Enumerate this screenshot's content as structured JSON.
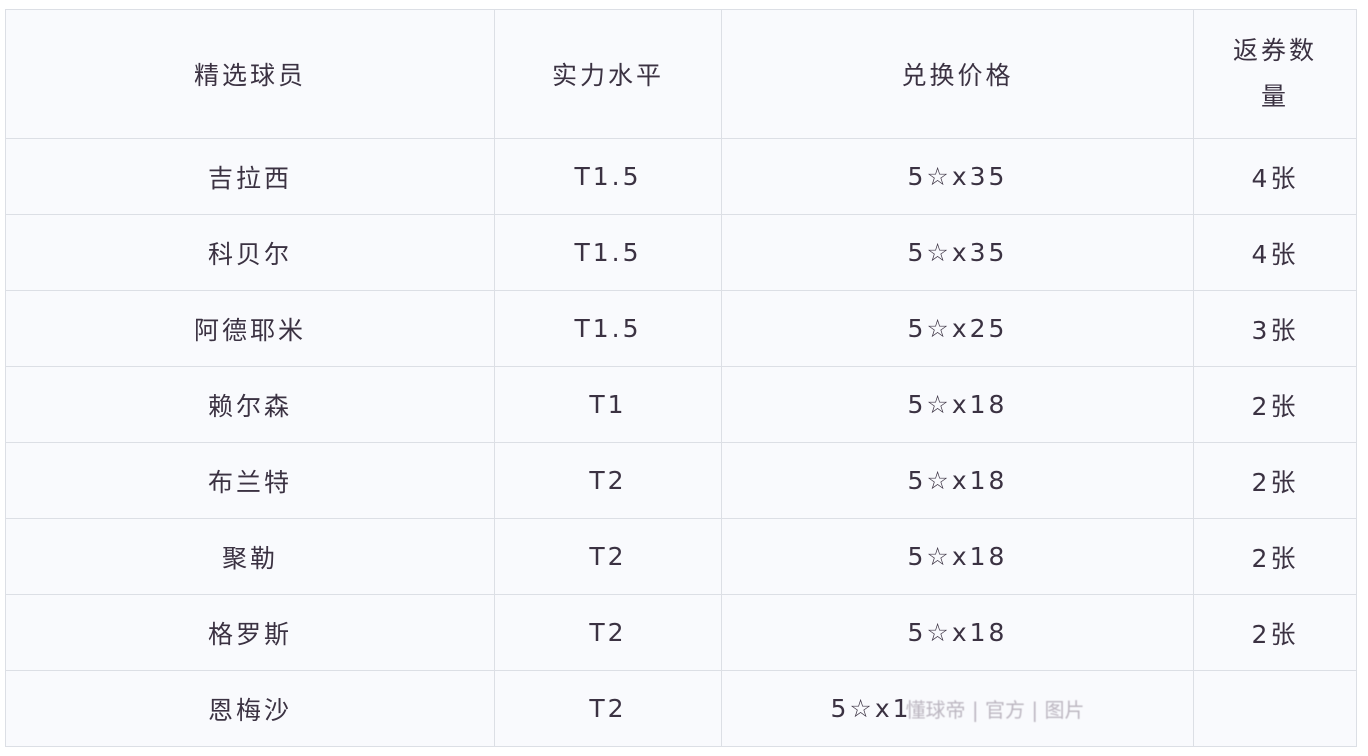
{
  "table": {
    "headers": [
      "精选球员",
      "实力水平",
      "兑换价格",
      "返券数量"
    ],
    "rows": [
      [
        "吉拉西",
        "T1.5",
        "5☆x35",
        "4张"
      ],
      [
        "科贝尔",
        "T1.5",
        "5☆x35",
        "4张"
      ],
      [
        "阿德耶米",
        "T1.5",
        "5☆x25",
        "3张"
      ],
      [
        "赖尔森",
        "T1",
        "5☆x18",
        "2张"
      ],
      [
        "布兰特",
        "T2",
        "5☆x18",
        "2张"
      ],
      [
        "聚勒",
        "T2",
        "5☆x18",
        "2张"
      ],
      [
        "格罗斯",
        "T2",
        "5☆x18",
        "2张"
      ],
      [
        "恩梅沙",
        "T2",
        "5☆x1",
        ""
      ]
    ]
  },
  "watermark": "懂球帝 | 官方 | 图片"
}
